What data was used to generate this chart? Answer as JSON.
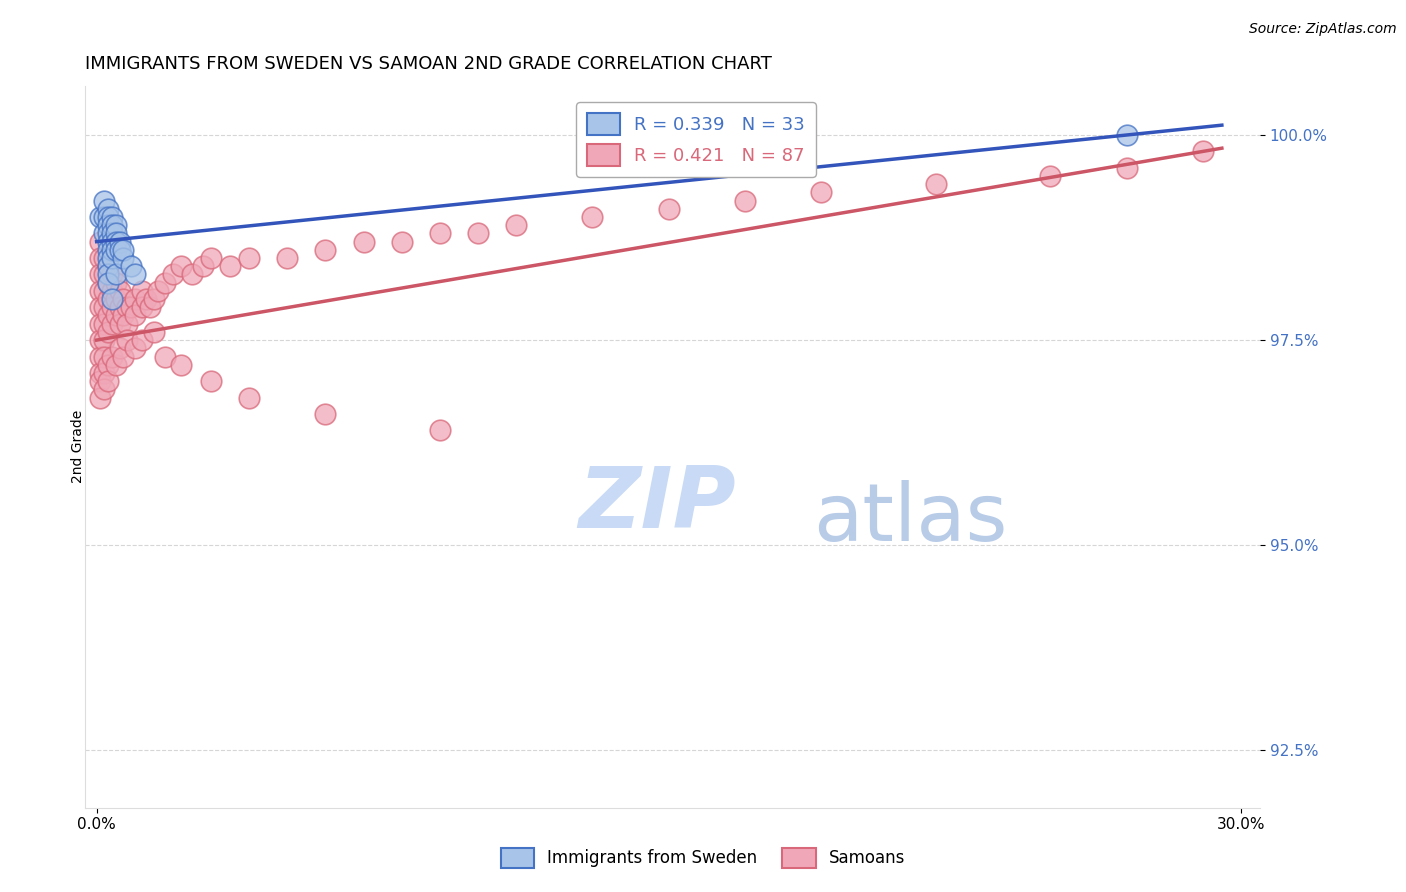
{
  "title": "IMMIGRANTS FROM SWEDEN VS SAMOAN 2ND GRADE CORRELATION CHART",
  "source_text": "Source: ZipAtlas.com",
  "ylabel": "2nd Grade",
  "xlim": [
    -0.003,
    0.305
  ],
  "ylim": [
    0.918,
    1.006
  ],
  "yticks": [
    0.925,
    0.95,
    0.975,
    1.0
  ],
  "ytick_labels": [
    "92.5%",
    "95.0%",
    "97.5%",
    "100.0%"
  ],
  "xticks": [
    0.0,
    0.3
  ],
  "xtick_labels": [
    "0.0%",
    "30.0%"
  ],
  "legend1_label": "R = 0.339   N = 33",
  "legend2_label": "R = 0.421   N = 87",
  "legend1_color": "#4472c4",
  "legend2_color": "#d9687a",
  "blue_scatter_color": "#a8c4e8",
  "pink_scatter_color": "#f0a8b8",
  "trendline1_color": "#3355bb",
  "trendline2_color": "#cc5566",
  "watermark_zip_color": "#c8daf0",
  "watermark_atlas_color": "#c8daf0",
  "background_color": "#ffffff",
  "title_fontsize": 13,
  "axis_label_fontsize": 10,
  "tick_fontsize": 11,
  "source_fontsize": 10,
  "legend_fontsize": 13,
  "sweden_x": [
    0.001,
    0.002,
    0.002,
    0.002,
    0.003,
    0.003,
    0.003,
    0.003,
    0.003,
    0.003,
    0.003,
    0.003,
    0.003,
    0.003,
    0.004,
    0.004,
    0.004,
    0.004,
    0.004,
    0.004,
    0.004,
    0.005,
    0.005,
    0.005,
    0.005,
    0.005,
    0.006,
    0.006,
    0.007,
    0.007,
    0.009,
    0.01,
    0.27
  ],
  "sweden_y": [
    0.99,
    0.992,
    0.99,
    0.988,
    0.991,
    0.99,
    0.989,
    0.988,
    0.987,
    0.986,
    0.985,
    0.984,
    0.983,
    0.982,
    0.99,
    0.989,
    0.988,
    0.987,
    0.986,
    0.985,
    0.98,
    0.989,
    0.988,
    0.987,
    0.986,
    0.983,
    0.987,
    0.986,
    0.985,
    0.986,
    0.984,
    0.983,
    1.0
  ],
  "samoan_x": [
    0.001,
    0.001,
    0.001,
    0.001,
    0.001,
    0.001,
    0.001,
    0.001,
    0.001,
    0.002,
    0.002,
    0.002,
    0.002,
    0.002,
    0.002,
    0.002,
    0.003,
    0.003,
    0.003,
    0.003,
    0.003,
    0.004,
    0.004,
    0.004,
    0.004,
    0.005,
    0.005,
    0.005,
    0.006,
    0.006,
    0.006,
    0.007,
    0.007,
    0.008,
    0.008,
    0.009,
    0.01,
    0.01,
    0.012,
    0.012,
    0.013,
    0.014,
    0.015,
    0.016,
    0.018,
    0.02,
    0.022,
    0.025,
    0.028,
    0.03,
    0.035,
    0.04,
    0.05,
    0.06,
    0.07,
    0.08,
    0.09,
    0.1,
    0.11,
    0.13,
    0.15,
    0.17,
    0.19,
    0.22,
    0.25,
    0.27,
    0.29,
    0.001,
    0.001,
    0.002,
    0.002,
    0.003,
    0.003,
    0.004,
    0.005,
    0.006,
    0.007,
    0.008,
    0.01,
    0.012,
    0.015,
    0.018,
    0.022,
    0.03,
    0.04,
    0.06,
    0.09
  ],
  "samoan_y": [
    0.987,
    0.985,
    0.983,
    0.981,
    0.979,
    0.977,
    0.975,
    0.973,
    0.971,
    0.985,
    0.983,
    0.981,
    0.979,
    0.977,
    0.975,
    0.973,
    0.984,
    0.982,
    0.98,
    0.978,
    0.976,
    0.983,
    0.981,
    0.979,
    0.977,
    0.982,
    0.98,
    0.978,
    0.981,
    0.979,
    0.977,
    0.98,
    0.978,
    0.979,
    0.977,
    0.979,
    0.98,
    0.978,
    0.981,
    0.979,
    0.98,
    0.979,
    0.98,
    0.981,
    0.982,
    0.983,
    0.984,
    0.983,
    0.984,
    0.985,
    0.984,
    0.985,
    0.985,
    0.986,
    0.987,
    0.987,
    0.988,
    0.988,
    0.989,
    0.99,
    0.991,
    0.992,
    0.993,
    0.994,
    0.995,
    0.996,
    0.998,
    0.97,
    0.968,
    0.971,
    0.969,
    0.972,
    0.97,
    0.973,
    0.972,
    0.974,
    0.973,
    0.975,
    0.974,
    0.975,
    0.976,
    0.973,
    0.972,
    0.97,
    0.968,
    0.966,
    0.964
  ]
}
